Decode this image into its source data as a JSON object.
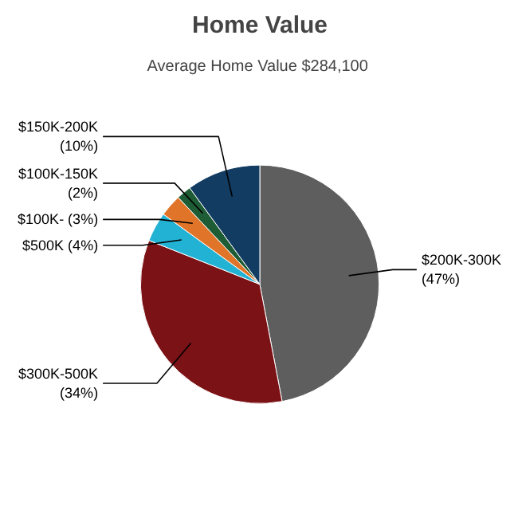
{
  "chart_data": {
    "type": "pie",
    "title": "Home Value",
    "subtitle": "Average Home Value  $284,100",
    "categories": [
      "$200K-300K",
      "$300K-500K",
      "$500K",
      "$100K-",
      "$100K-150K",
      "$150K-200K"
    ],
    "values": [
      47,
      34,
      4,
      3,
      2,
      10
    ],
    "value_labels": [
      "(47%)",
      "(34%)",
      "(4%)",
      "(3%)",
      "(2%)",
      "(10%)"
    ],
    "colors": [
      "#5e5e5e",
      "#7b1216",
      "#22b2d4",
      "#e07428",
      "#1d5c34",
      "#123c62"
    ]
  }
}
